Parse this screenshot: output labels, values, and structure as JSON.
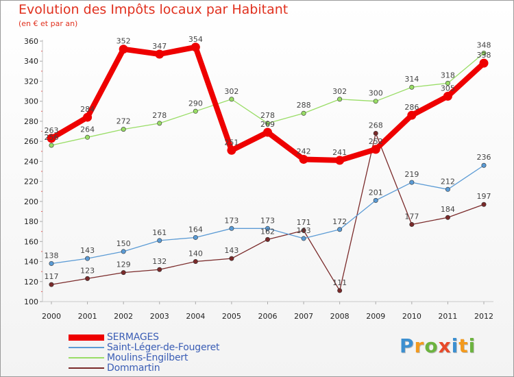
{
  "title": "Evolution des Impôts locaux par Habitant",
  "subtitle": "(en € et par an)",
  "logo": {
    "text": "Proxiti",
    "letter_colors": [
      "#3c8fd0",
      "#f39a1e",
      "#6cb33f",
      "#e84a2a",
      "#3c8fd0",
      "#f39a1e",
      "#6cb33f"
    ]
  },
  "chart_data": {
    "type": "line",
    "title": "Evolution des Impôts locaux par Habitant",
    "subtitle": "(en € et par an)",
    "xlabel": "",
    "ylabel": "",
    "ylim": [
      100,
      360
    ],
    "ytick_step": 20,
    "grid": false,
    "legend_position": "bottom-left",
    "categories": [
      "2000",
      "2001",
      "2002",
      "2003",
      "2004",
      "2005",
      "2006",
      "2007",
      "2008",
      "2009",
      "2010",
      "2011",
      "2012"
    ],
    "series": [
      {
        "name": "SERMAGES",
        "color": "#ee0000",
        "values": [
          263,
          284,
          352,
          347,
          354,
          251,
          269,
          242,
          241,
          252,
          286,
          305,
          338
        ]
      },
      {
        "name": "Saint-Léger-de-Fougeret",
        "color": "#5b9bd5",
        "values": [
          138,
          143,
          150,
          161,
          164,
          173,
          173,
          163,
          172,
          201,
          219,
          212,
          236
        ]
      },
      {
        "name": "Moulins-Engilbert",
        "color": "#99dd66",
        "values": [
          256,
          264,
          272,
          278,
          290,
          302,
          278,
          288,
          302,
          300,
          314,
          318,
          348
        ]
      },
      {
        "name": "Dommartin",
        "color": "#7a2a2a",
        "values": [
          117,
          123,
          129,
          132,
          140,
          143,
          162,
          171,
          111,
          268,
          177,
          184,
          197
        ]
      }
    ],
    "labels": {
      "SERMAGES": [
        "263",
        "284",
        "352",
        "347",
        "354",
        "251",
        "269",
        "242",
        "241",
        "252",
        "286",
        "305",
        "338"
      ],
      "Saint-Léger-de-Fougeret": [
        "138",
        "143",
        "150",
        "161",
        "164",
        "173",
        "173",
        "163",
        "172",
        "201",
        "219",
        "212",
        "236"
      ],
      "Moulins-Engilbert": [
        "256",
        "264",
        "272",
        "278",
        "290",
        "302",
        "278",
        "288",
        "302",
        "300",
        "314",
        "318",
        "348"
      ],
      "Dommartin": [
        "117",
        "123",
        "129",
        "132",
        "140",
        "143",
        "162",
        "171",
        "111",
        "268",
        "177",
        "184",
        "197"
      ]
    }
  }
}
